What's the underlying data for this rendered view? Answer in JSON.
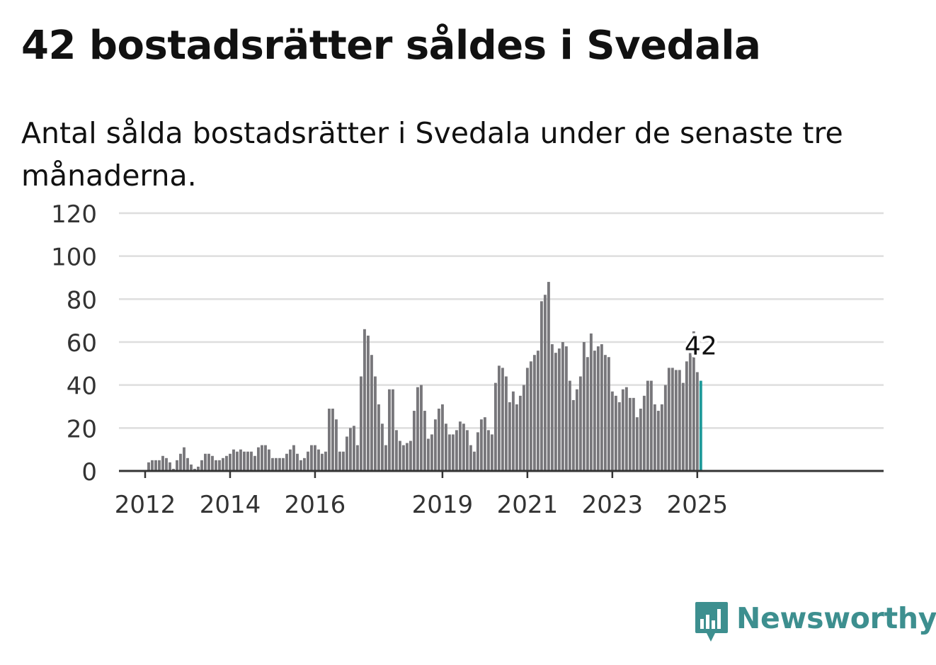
{
  "title": "42 bostadsrätter såldes i Svedala",
  "subtitle": "Antal sålda bostadsrätter i Svedala under de senaste tre månaderna.",
  "brand": {
    "name": "Newsworthy",
    "color": "#3d8f8f"
  },
  "colors": {
    "bar": "#78777b",
    "highlight": "#1f9a9a",
    "grid": "#dedede",
    "axis": "#333333"
  },
  "chart_data": {
    "type": "bar",
    "title": "42 bostadsrätter såldes i Svedala",
    "subtitle": "Antal sålda bostadsrätter i Svedala under de senaste tre månaderna.",
    "start_month": "2011-07",
    "values": [
      0,
      0,
      0,
      0,
      0,
      0,
      0,
      4,
      5,
      5,
      5,
      7,
      6,
      4,
      1,
      5,
      8,
      11,
      6,
      3,
      1,
      2,
      5,
      8,
      8,
      7,
      5,
      5,
      6,
      7,
      8,
      10,
      9,
      10,
      9,
      9,
      9,
      7,
      11,
      12,
      12,
      10,
      6,
      6,
      6,
      6,
      8,
      10,
      12,
      8,
      5,
      6,
      9,
      12,
      12,
      10,
      8,
      9,
      29,
      29,
      24,
      9,
      9,
      16,
      20,
      21,
      12,
      44,
      66,
      63,
      54,
      44,
      31,
      22,
      12,
      38,
      38,
      19,
      14,
      12,
      13,
      14,
      28,
      39,
      40,
      28,
      15,
      17,
      24,
      29,
      31,
      22,
      17,
      17,
      19,
      23,
      22,
      19,
      12,
      9,
      18,
      24,
      25,
      19,
      17,
      41,
      49,
      48,
      44,
      32,
      37,
      31,
      35,
      40,
      48,
      51,
      54,
      56,
      79,
      82,
      88,
      59,
      55,
      57,
      60,
      58,
      42,
      33,
      38,
      44,
      60,
      53,
      64,
      56,
      58,
      59,
      54,
      53,
      37,
      35,
      32,
      38,
      39,
      34,
      34,
      25,
      29,
      35,
      42,
      42,
      31,
      28,
      31,
      40,
      48,
      48,
      47,
      47,
      41,
      51,
      55,
      65,
      46,
      42
    ],
    "highlight_last": true,
    "highlight_label": "42",
    "y_ticks": [
      0,
      20,
      40,
      60,
      80,
      100,
      120
    ],
    "ylim": [
      0,
      120
    ],
    "x_ticks": [
      {
        "label": "2012",
        "date": "2012-01"
      },
      {
        "label": "2014",
        "date": "2014-01"
      },
      {
        "label": "2016",
        "date": "2016-01"
      },
      {
        "label": "2019",
        "date": "2019-01"
      },
      {
        "label": "2021",
        "date": "2021-01"
      },
      {
        "label": "2023",
        "date": "2023-01"
      },
      {
        "label": "2025",
        "date": "2025-01"
      }
    ],
    "grid": true,
    "legend": "none"
  }
}
